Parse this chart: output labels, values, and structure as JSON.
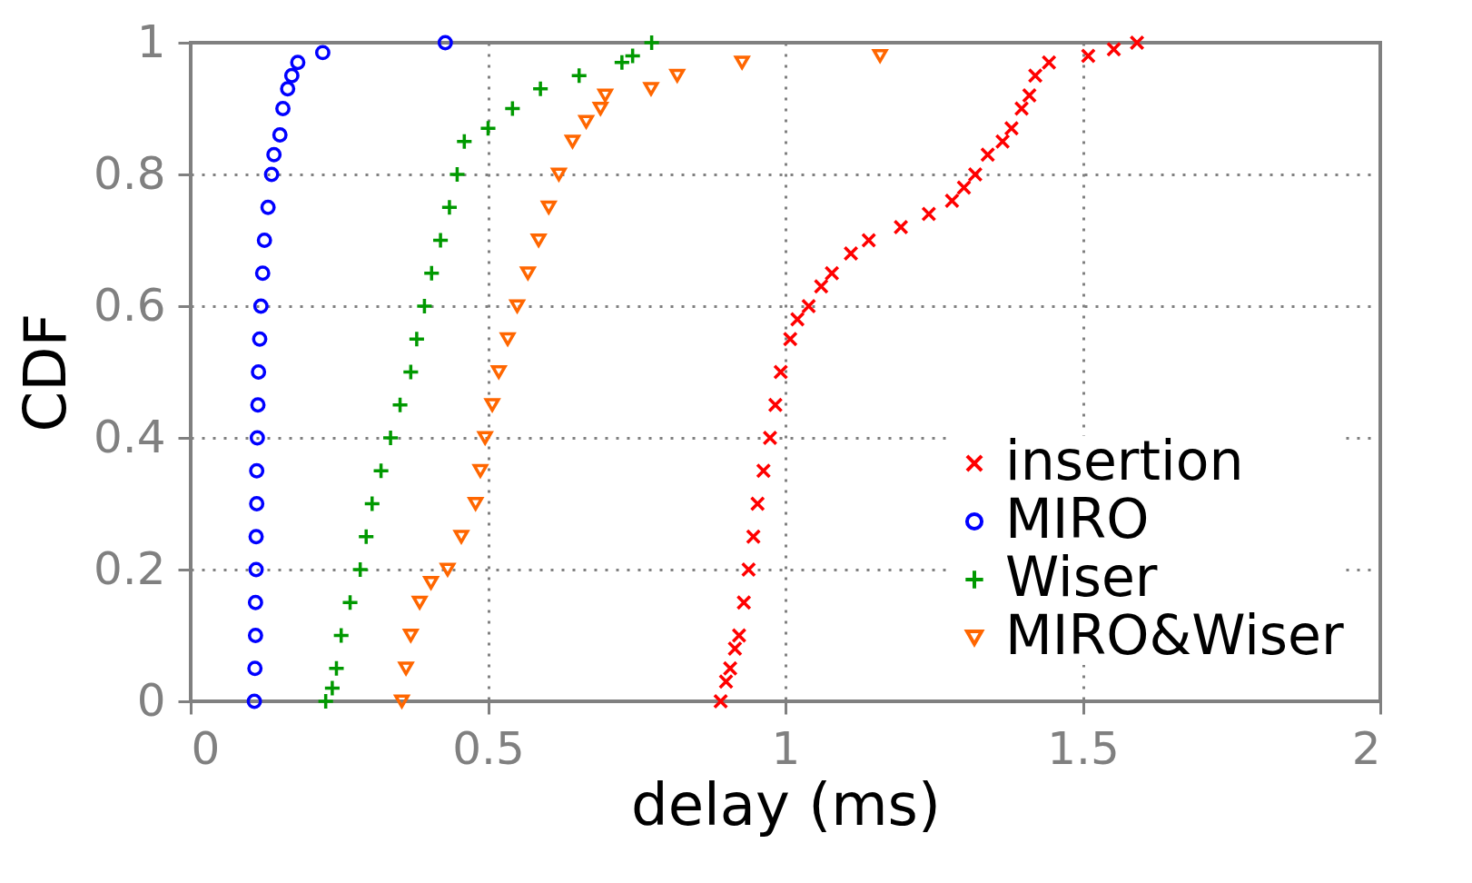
{
  "chart_data": {
    "type": "scatter",
    "xlabel": "delay (ms)",
    "ylabel": "CDF",
    "xlim": [
      0,
      2
    ],
    "ylim": [
      0,
      1
    ],
    "xticks": [
      0,
      0.5,
      1,
      1.5,
      2
    ],
    "yticks": [
      0,
      0.2,
      0.4,
      0.6,
      0.8,
      1
    ],
    "grid": true,
    "legend": "bottom right",
    "series": [
      {
        "name": "insertion",
        "color": "#ff0000",
        "marker": "cross",
        "x": [
          0.891,
          0.9,
          0.907,
          0.915,
          0.922,
          0.93,
          0.938,
          0.946,
          0.953,
          0.963,
          0.974,
          0.983,
          0.992,
          1.008,
          1.02,
          1.039,
          1.06,
          1.078,
          1.11,
          1.14,
          1.194,
          1.241,
          1.28,
          1.3,
          1.319,
          1.34,
          1.365,
          1.38,
          1.397,
          1.41,
          1.42,
          1.443,
          1.509,
          1.552,
          1.591
        ],
        "values": [
          0,
          0.03,
          0.05,
          0.08,
          0.1,
          0.15,
          0.2,
          0.25,
          0.3,
          0.35,
          0.4,
          0.45,
          0.5,
          0.55,
          0.58,
          0.6,
          0.63,
          0.65,
          0.68,
          0.7,
          0.72,
          0.74,
          0.76,
          0.78,
          0.8,
          0.83,
          0.85,
          0.87,
          0.9,
          0.92,
          0.95,
          0.97,
          0.98,
          0.99,
          1
        ]
      },
      {
        "name": "MIRO",
        "color": "#0000ff",
        "marker": "circle",
        "x": [
          0.107,
          0.108,
          0.109,
          0.109,
          0.11,
          0.11,
          0.111,
          0.111,
          0.112,
          0.113,
          0.114,
          0.116,
          0.118,
          0.121,
          0.124,
          0.13,
          0.136,
          0.14,
          0.15,
          0.155,
          0.163,
          0.17,
          0.18,
          0.222,
          0.428
        ],
        "values": [
          0,
          0.05,
          0.1,
          0.15,
          0.2,
          0.25,
          0.3,
          0.35,
          0.4,
          0.45,
          0.5,
          0.55,
          0.6,
          0.65,
          0.7,
          0.75,
          0.8,
          0.83,
          0.86,
          0.9,
          0.93,
          0.95,
          0.97,
          0.985,
          1
        ]
      },
      {
        "name": "Wiser",
        "color": "#009900",
        "marker": "plus",
        "x": [
          0.227,
          0.238,
          0.245,
          0.253,
          0.268,
          0.285,
          0.295,
          0.305,
          0.32,
          0.336,
          0.352,
          0.37,
          0.38,
          0.393,
          0.405,
          0.42,
          0.435,
          0.448,
          0.46,
          0.5,
          0.541,
          0.588,
          0.653,
          0.725,
          0.743,
          0.775
        ],
        "values": [
          0,
          0.02,
          0.05,
          0.1,
          0.15,
          0.2,
          0.25,
          0.3,
          0.35,
          0.4,
          0.45,
          0.5,
          0.55,
          0.6,
          0.65,
          0.7,
          0.75,
          0.8,
          0.85,
          0.87,
          0.9,
          0.93,
          0.95,
          0.97,
          0.98,
          1
        ]
      },
      {
        "name": "MIRO&Wiser",
        "color": "#ff6600",
        "marker": "triangle-down",
        "x": [
          0.355,
          0.362,
          0.37,
          0.385,
          0.404,
          0.432,
          0.455,
          0.479,
          0.487,
          0.495,
          0.507,
          0.518,
          0.533,
          0.549,
          0.567,
          0.585,
          0.602,
          0.619,
          0.642,
          0.665,
          0.689,
          0.697,
          0.774,
          0.818,
          0.927,
          1.159
        ],
        "values": [
          0,
          0.05,
          0.1,
          0.15,
          0.18,
          0.2,
          0.25,
          0.3,
          0.35,
          0.4,
          0.45,
          0.5,
          0.55,
          0.6,
          0.65,
          0.7,
          0.75,
          0.8,
          0.85,
          0.88,
          0.9,
          0.92,
          0.93,
          0.95,
          0.97,
          0.98
        ]
      }
    ]
  }
}
